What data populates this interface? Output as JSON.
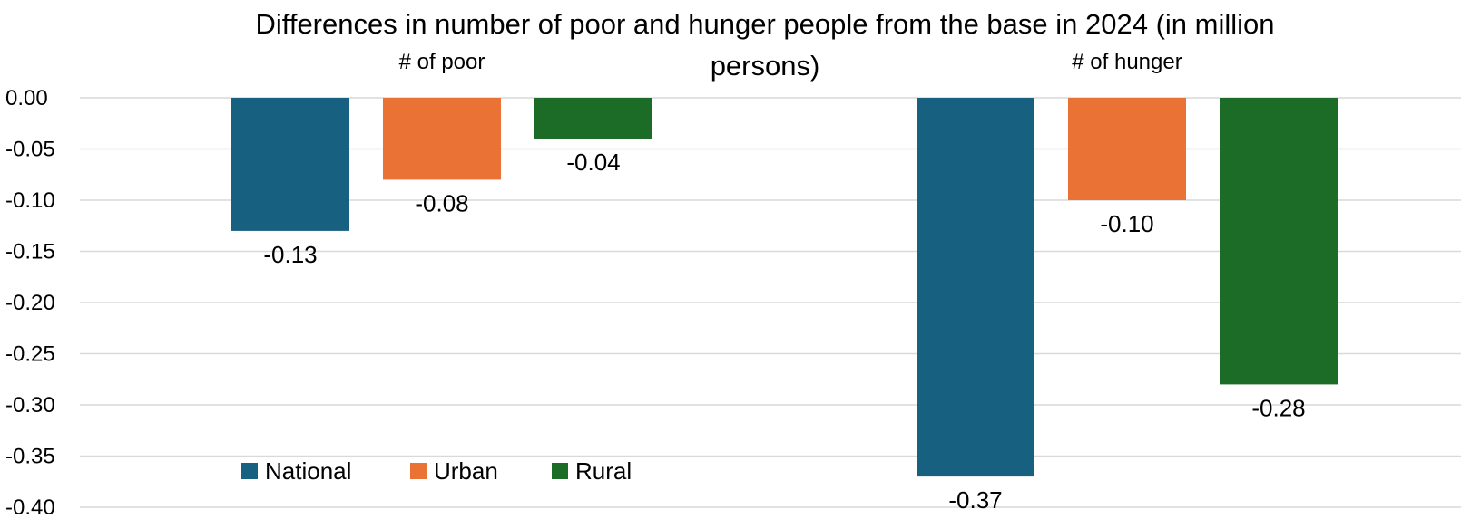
{
  "chart_data": {
    "type": "bar",
    "title_lines": [
      "Differences in number of poor and hunger people from the base in 2024 (in million",
      "persons)"
    ],
    "categories": [
      "# of poor",
      "# of hunger"
    ],
    "series": [
      {
        "name": "National",
        "color": "#17607f",
        "values": [
          -0.13,
          -0.37
        ]
      },
      {
        "name": "Urban",
        "color": "#ea7234",
        "values": [
          -0.08,
          -0.1
        ]
      },
      {
        "name": "Rural",
        "color": "#1c6b26",
        "values": [
          -0.04,
          -0.28
        ]
      }
    ],
    "ylim": [
      -0.4,
      0.0
    ],
    "yticks": [
      "0.00",
      "-0.05",
      "-0.10",
      "-0.15",
      "-0.20",
      "-0.25",
      "-0.30",
      "-0.35",
      "-0.40"
    ],
    "data_labels": [
      [
        "-0.13",
        "-0.37"
      ],
      [
        "-0.08",
        "-0.10"
      ],
      [
        "-0.04",
        "-0.28"
      ]
    ],
    "grid": true,
    "legend_position": "bottom-left"
  }
}
